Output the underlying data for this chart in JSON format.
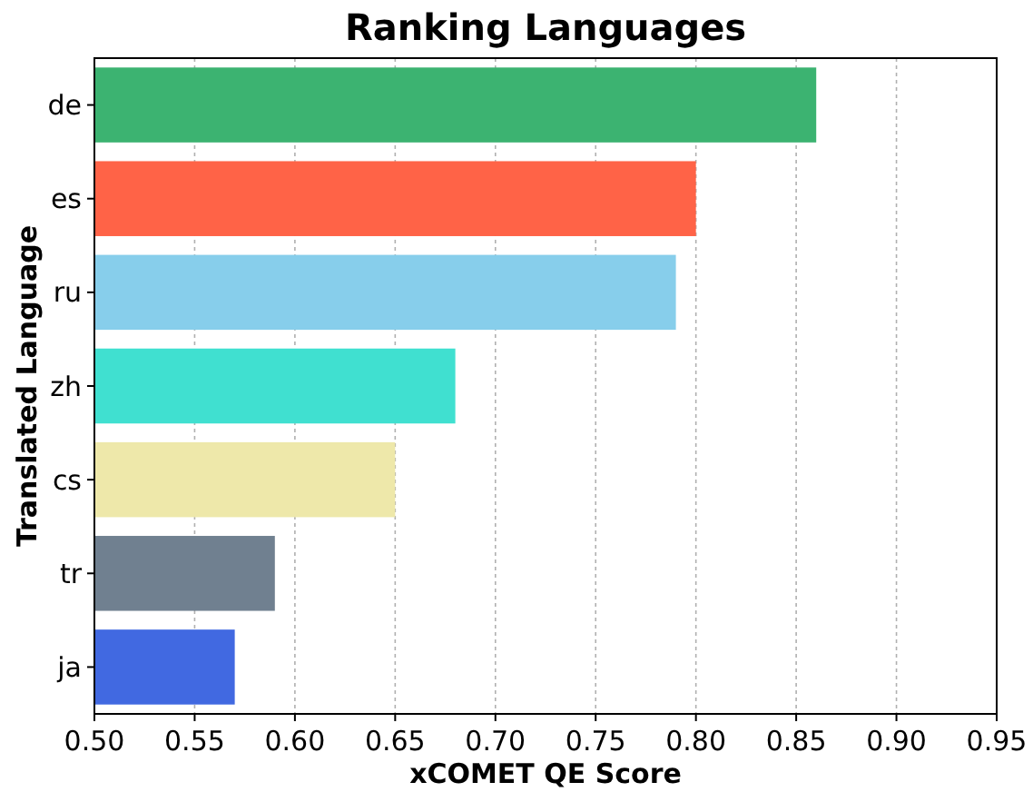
{
  "chart_data": {
    "type": "bar",
    "orientation": "horizontal",
    "title": "Ranking Languages",
    "xlabel": "xCOMET QE Score",
    "ylabel": "Translated Language",
    "categories": [
      "de",
      "es",
      "ru",
      "zh",
      "cs",
      "tr",
      "ja"
    ],
    "values": [
      0.86,
      0.8,
      0.79,
      0.68,
      0.65,
      0.59,
      0.57
    ],
    "colors": [
      "#3cb371",
      "#ff6347",
      "#87ceeb",
      "#40e0d0",
      "#eee8aa",
      "#708090",
      "#4169e1"
    ],
    "xlim": [
      0.5,
      0.95
    ],
    "xticks": [
      {
        "value": 0.5,
        "label": "0.50"
      },
      0.55,
      {
        "value": 0.6,
        "label": "0.60"
      },
      0.65,
      {
        "value": 0.7,
        "label": "0.70"
      },
      0.75,
      {
        "value": 0.8,
        "label": "0.80"
      },
      0.85,
      {
        "value": 0.9,
        "label": "0.90"
      },
      0.95
    ],
    "grid": "x"
  }
}
